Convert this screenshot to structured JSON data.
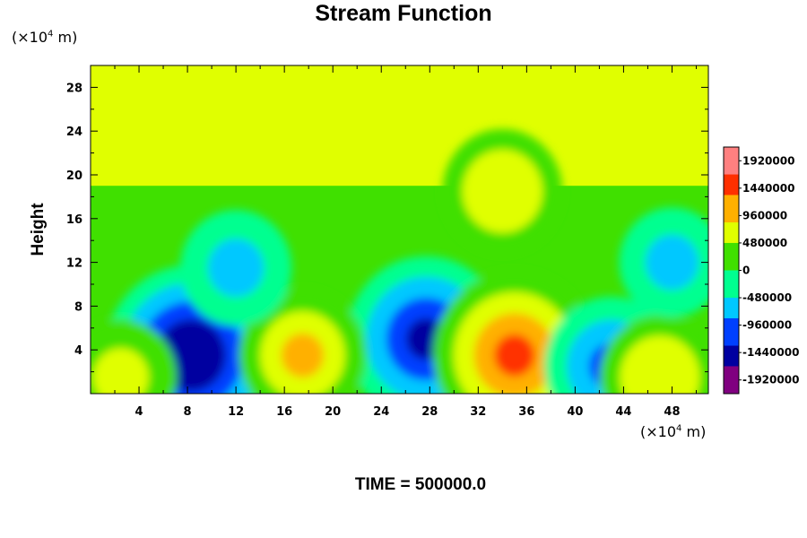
{
  "chart_data": {
    "type": "heatmap",
    "title": "Stream Function",
    "ylabel": "Height",
    "x_unit_prefix": "(×10",
    "x_unit_exp": "4",
    "x_unit_suffix": " m)",
    "y_unit_prefix": "(×10",
    "y_unit_exp": "4",
    "y_unit_suffix": " m)",
    "footer": "TIME = 500000.0",
    "xlim": [
      0,
      51
    ],
    "ylim": [
      0,
      30
    ],
    "xticks": [
      4,
      8,
      12,
      16,
      20,
      24,
      28,
      32,
      36,
      40,
      44,
      48
    ],
    "yticks": [
      4,
      8,
      12,
      16,
      20,
      24,
      28
    ],
    "colorbar": {
      "range": [
        -2160000,
        2160000
      ],
      "ticks": [
        1920000,
        1440000,
        960000,
        480000,
        0,
        -480000,
        -960000,
        -1440000,
        -1920000
      ],
      "colors": [
        "#800080",
        "#0000a0",
        "#0040ff",
        "#00c8ff",
        "#00ff90",
        "#40e000",
        "#e0ff00",
        "#ffb000",
        "#ff3000",
        "#ff8080"
      ]
    },
    "background_value": 0,
    "upper_layer": {
      "from_height": 19,
      "value": 480000
    },
    "features": [
      {
        "x": 8.3,
        "y": 3.5,
        "value": -1700000
      },
      {
        "x": 27.7,
        "y": 5,
        "value": -1450000
      },
      {
        "x": 17.5,
        "y": 3.5,
        "value": 880000
      },
      {
        "x": 35,
        "y": 3.5,
        "value": 1500000
      },
      {
        "x": 43,
        "y": 2.5,
        "value": -1000000
      },
      {
        "x": 47,
        "y": 1.5,
        "value": 750000
      },
      {
        "x": 2.5,
        "y": 1.5,
        "value": 600000
      },
      {
        "x": 34,
        "y": 18.5,
        "value": 750000
      },
      {
        "x": 12,
        "y": 11.5,
        "value": -600000
      },
      {
        "x": 48,
        "y": 12,
        "value": -500000
      }
    ]
  }
}
